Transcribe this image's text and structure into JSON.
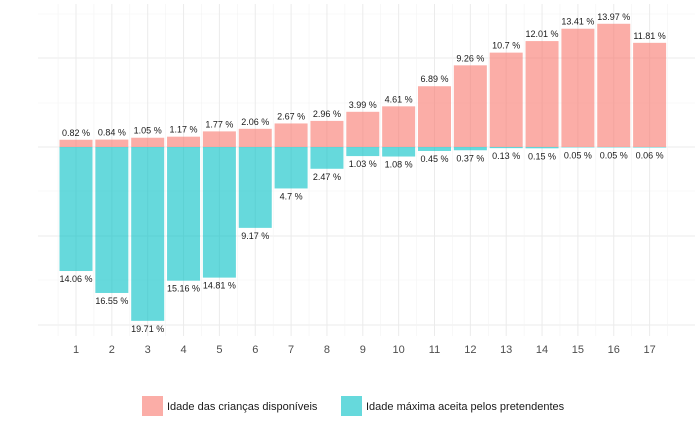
{
  "chart_data": {
    "type": "bar",
    "categories": [
      "1",
      "2",
      "3",
      "4",
      "5",
      "6",
      "7",
      "8",
      "9",
      "10",
      "11",
      "12",
      "13",
      "14",
      "15",
      "16",
      "17"
    ],
    "series": [
      {
        "name": "Idade das crianças disponíveis",
        "color": "#F8766D",
        "values": [
          0.82,
          0.84,
          1.05,
          1.17,
          1.77,
          2.06,
          2.67,
          2.96,
          3.99,
          4.61,
          6.89,
          9.26,
          10.7,
          12.01,
          13.41,
          13.97,
          11.81
        ],
        "labels": [
          "0.82 %",
          "0.84 %",
          "1.05 %",
          "1.17 %",
          "1.77 %",
          "2.06 %",
          "2.67 %",
          "2.96 %",
          "3.99 %",
          "4.61 %",
          "6.89 %",
          "9.26 %",
          "10.7 %",
          "12.01 %",
          "13.41 %",
          "13.97 %",
          "11.81 %"
        ],
        "direction": "up"
      },
      {
        "name": "Idade máxima aceita pelos pretendentes",
        "color": "#00BFC4",
        "values": [
          14.06,
          16.55,
          19.71,
          15.16,
          14.81,
          9.17,
          4.7,
          2.47,
          1.03,
          1.08,
          0.45,
          0.37,
          0.13,
          0.15,
          0.05,
          0.05,
          0.06
        ],
        "labels": [
          "14.06 %",
          "16.55 %",
          "19.71 %",
          "15.16 %",
          "14.81 %",
          "9.17 %",
          "4.7 %",
          "2.47 %",
          "1.03 %",
          "1.08 %",
          "0.45 %",
          "0.37 %",
          "0.13 %",
          "0.15 %",
          "0.05 %",
          "0.05 %",
          "0.06 %"
        ],
        "direction": "down"
      }
    ],
    "title": "",
    "xlabel": "",
    "ylabel": "",
    "y_tick_labels_shown": false,
    "grid": true,
    "legend_position": "bottom"
  }
}
